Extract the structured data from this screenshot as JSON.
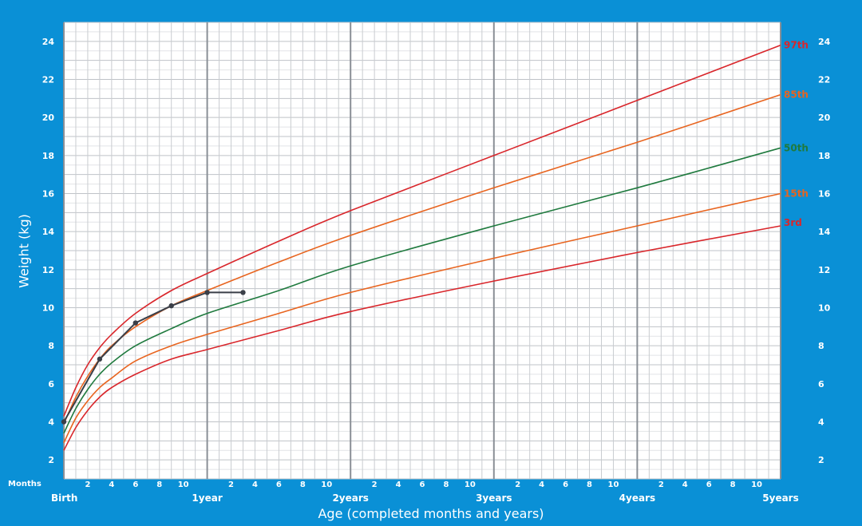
{
  "chart_data": {
    "type": "line",
    "xlabel": "Age (completed months and years)",
    "ylabel": "Weight (kg)",
    "x_units": "months",
    "xlim": [
      0,
      60
    ],
    "ylim": [
      1,
      25
    ],
    "y_ticks": [
      2,
      4,
      6,
      8,
      10,
      12,
      14,
      16,
      18,
      20,
      22,
      24
    ],
    "months_label": "Months",
    "month_tick_labels": [
      "2",
      "4",
      "6",
      "8",
      "10"
    ],
    "year_labels": [
      "Birth",
      "1year",
      "2years",
      "3years",
      "4years",
      "5years"
    ],
    "series": [
      {
        "name": "97th",
        "color": "#d9262b",
        "x": [
          0,
          1,
          2,
          3,
          4,
          6,
          9,
          12,
          18,
          24,
          36,
          48,
          60
        ],
        "y": [
          4.3,
          5.8,
          7.0,
          7.9,
          8.6,
          9.7,
          10.9,
          11.8,
          13.5,
          15.1,
          18.0,
          20.9,
          23.8
        ]
      },
      {
        "name": "85th",
        "color": "#e8641f",
        "x": [
          0,
          1,
          2,
          3,
          4,
          6,
          9,
          12,
          18,
          24,
          36,
          48,
          60
        ],
        "y": [
          3.9,
          5.3,
          6.4,
          7.3,
          8.0,
          9.0,
          10.1,
          10.9,
          12.4,
          13.8,
          16.3,
          18.7,
          21.2
        ]
      },
      {
        "name": "50th",
        "color": "#1f7a3e",
        "x": [
          0,
          1,
          2,
          3,
          4,
          6,
          9,
          12,
          18,
          24,
          36,
          48,
          60
        ],
        "y": [
          3.4,
          4.7,
          5.7,
          6.5,
          7.1,
          8.0,
          8.9,
          9.7,
          10.9,
          12.2,
          14.3,
          16.3,
          18.4
        ]
      },
      {
        "name": "15th",
        "color": "#e8641f",
        "x": [
          0,
          1,
          2,
          3,
          4,
          6,
          9,
          12,
          18,
          24,
          36,
          48,
          60
        ],
        "y": [
          2.9,
          4.2,
          5.1,
          5.8,
          6.3,
          7.2,
          8.0,
          8.6,
          9.7,
          10.8,
          12.6,
          14.3,
          16.0
        ]
      },
      {
        "name": "3rd",
        "color": "#d9262b",
        "x": [
          0,
          1,
          2,
          3,
          4,
          6,
          9,
          12,
          18,
          24,
          36,
          48,
          60
        ],
        "y": [
          2.5,
          3.7,
          4.6,
          5.3,
          5.8,
          6.5,
          7.3,
          7.8,
          8.8,
          9.8,
          11.4,
          12.9,
          14.3
        ]
      }
    ],
    "child_record": {
      "color": "#3a3f48",
      "x": [
        0,
        3,
        6,
        9,
        12,
        15
      ],
      "y": [
        4.0,
        7.3,
        9.2,
        10.1,
        10.8,
        10.8
      ]
    }
  }
}
